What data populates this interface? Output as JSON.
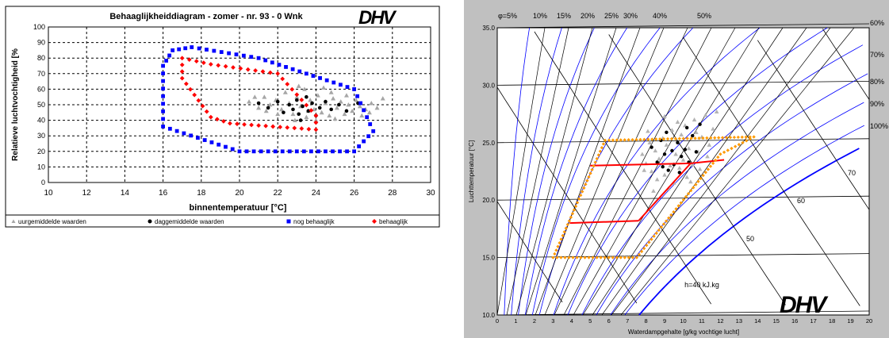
{
  "chart_data": [
    {
      "type": "scatter",
      "title": "Behaaglijkheiddiagram - zomer - nr. 93 - 0 Wnk",
      "xlabel": "binnentemperatuur [°C]",
      "ylabel": "Relatieve luchtvochtigheid [%",
      "xlim": [
        10,
        30
      ],
      "ylim": [
        0,
        100
      ],
      "xticks": [
        10,
        12,
        14,
        16,
        18,
        20,
        22,
        24,
        26,
        28,
        30
      ],
      "yticks": [
        0,
        10,
        20,
        30,
        40,
        50,
        60,
        70,
        80,
        90,
        100
      ],
      "grid": true,
      "legend_position": "bottom",
      "series": [
        {
          "name": "uurgemiddelde waarden",
          "marker": "triangle",
          "color": "#a6a6a6",
          "points": [
            [
              20.5,
              52
            ],
            [
              21.0,
              48
            ],
            [
              21.3,
              55
            ],
            [
              21.6,
              50
            ],
            [
              21.9,
              53
            ],
            [
              22.2,
              47
            ],
            [
              22.4,
              58
            ],
            [
              22.6,
              51
            ],
            [
              22.8,
              44
            ],
            [
              23.0,
              55
            ],
            [
              23.2,
              49
            ],
            [
              23.4,
              60
            ],
            [
              23.5,
              42
            ],
            [
              23.7,
              53
            ],
            [
              23.9,
              47
            ],
            [
              24.1,
              56
            ],
            [
              24.3,
              45
            ],
            [
              24.5,
              51
            ],
            [
              24.7,
              43
            ],
            [
              24.9,
              54
            ],
            [
              25.1,
              48
            ],
            [
              25.3,
              52
            ],
            [
              25.5,
              44
            ],
            [
              25.7,
              50
            ],
            [
              25.9,
              46
            ],
            [
              26.1,
              53
            ],
            [
              26.3,
              49
            ],
            [
              26.6,
              47
            ],
            [
              26.9,
              51
            ],
            [
              27.2,
              48
            ],
            [
              27.5,
              54
            ],
            [
              22.0,
              44
            ],
            [
              23.1,
              62
            ],
            [
              24.0,
              40
            ],
            [
              24.8,
              58
            ],
            [
              25.6,
              56
            ],
            [
              26.4,
              43
            ],
            [
              21.4,
              46
            ],
            [
              22.9,
              40
            ],
            [
              23.6,
              46
            ],
            [
              24.4,
              61
            ],
            [
              25.0,
              41
            ],
            [
              20.8,
              55
            ],
            [
              26.8,
              45
            ]
          ]
        },
        {
          "name": "daggemiddelde waarden",
          "marker": "circle",
          "color": "#000000",
          "points": [
            [
              21.0,
              51
            ],
            [
              21.5,
              48
            ],
            [
              22.0,
              52
            ],
            [
              22.3,
              45
            ],
            [
              22.6,
              50
            ],
            [
              22.8,
              47
            ],
            [
              23.0,
              53
            ],
            [
              23.1,
              44
            ],
            [
              23.3,
              49
            ],
            [
              23.5,
              55
            ],
            [
              23.6,
              46
            ],
            [
              23.8,
              51
            ],
            [
              24.0,
              43
            ],
            [
              24.2,
              48
            ],
            [
              24.5,
              52
            ],
            [
              24.8,
              47
            ],
            [
              25.2,
              50
            ],
            [
              25.6,
              46
            ],
            [
              26.2,
              51
            ],
            [
              23.2,
              40
            ]
          ]
        },
        {
          "name": "nog behaaglijk",
          "marker": "square",
          "color": "#0000ff",
          "polygon": [
            [
              16.0,
              75
            ],
            [
              16.5,
              85
            ],
            [
              17.5,
              87
            ],
            [
              21.0,
              80
            ],
            [
              26.0,
              60
            ],
            [
              27.0,
              33
            ],
            [
              26.0,
              20
            ],
            [
              20.0,
              20
            ],
            [
              16.0,
              36
            ]
          ]
        },
        {
          "name": "behaaglijk",
          "marker": "diamond",
          "color": "#ff0000",
          "polygon": [
            [
              17.0,
              80
            ],
            [
              18.5,
              76
            ],
            [
              22.0,
              70
            ],
            [
              24.0,
              43
            ],
            [
              24.0,
              34
            ],
            [
              19.5,
              38
            ],
            [
              18.5,
              42
            ],
            [
              17.0,
              67
            ]
          ]
        }
      ],
      "logo_text": "DHV"
    },
    {
      "type": "scatter",
      "title": "",
      "xlabel": "Waterdampgehalte [g/kg vochtige lucht]",
      "ylabel": "Luchttemperatuur [°C]",
      "xlim": [
        0,
        20
      ],
      "ylim": [
        10.0,
        35.0
      ],
      "xticks": [
        0,
        1,
        2,
        3,
        4,
        5,
        6,
        7,
        8,
        9,
        10,
        11,
        12,
        13,
        14,
        15,
        16,
        17,
        18,
        19,
        20
      ],
      "yticks": [
        "10.0",
        "15.0",
        "20.0",
        "25.0",
        "30.0",
        "35.0"
      ],
      "rh_labels_top": [
        "φ=5%",
        "10%",
        "15%",
        "20%",
        "25%",
        "30%",
        "40%",
        "50%"
      ],
      "rh_labels_right": [
        "60%",
        "70%",
        "80%",
        "90%",
        "100%"
      ],
      "rh_levels": [
        5,
        10,
        15,
        20,
        25,
        30,
        40,
        50,
        60,
        70,
        80,
        90,
        100
      ],
      "enthalpy_labels": [
        "h=40 kJ.kg",
        "50",
        "60",
        "70"
      ],
      "enthalpy_levels": [
        20,
        30,
        40,
        50,
        60,
        70,
        80,
        90,
        100
      ],
      "series": [
        {
          "name": "uurgemiddelde waarden",
          "marker": "triangle",
          "color": "#b3b3b3",
          "points": [
            [
              7.8,
              24.0
            ],
            [
              8.0,
              23.2
            ],
            [
              8.2,
              25.0
            ],
            [
              8.3,
              22.5
            ],
            [
              8.5,
              24.3
            ],
            [
              8.6,
              21.8
            ],
            [
              8.7,
              23.6
            ],
            [
              8.9,
              25.4
            ],
            [
              9.0,
              22.2
            ],
            [
              9.1,
              24.8
            ],
            [
              9.3,
              23.0
            ],
            [
              9.4,
              26.1
            ],
            [
              9.5,
              21.5
            ],
            [
              9.6,
              24.0
            ],
            [
              9.8,
              22.8
            ],
            [
              9.9,
              25.7
            ],
            [
              10.0,
              23.5
            ],
            [
              10.1,
              26.5
            ],
            [
              10.2,
              22.0
            ],
            [
              10.3,
              24.5
            ],
            [
              10.5,
              23.1
            ],
            [
              10.6,
              27.0
            ],
            [
              10.8,
              24.2
            ],
            [
              11.0,
              25.5
            ],
            [
              11.2,
              27.4
            ],
            [
              11.4,
              24.8
            ],
            [
              11.6,
              26.2
            ],
            [
              11.8,
              27.7
            ],
            [
              8.4,
              20.8
            ],
            [
              9.2,
              21.0
            ],
            [
              9.7,
              26.8
            ],
            [
              10.4,
              21.6
            ],
            [
              8.1,
              26.0
            ],
            [
              10.9,
              22.7
            ],
            [
              11.3,
              23.8
            ],
            [
              7.9,
              22.6
            ],
            [
              9.0,
              27.3
            ],
            [
              10.7,
              25.9
            ]
          ]
        },
        {
          "name": "daggemiddelde waarden",
          "marker": "circle",
          "color": "#000000",
          "points": [
            [
              8.3,
              24.6
            ],
            [
              8.6,
              23.3
            ],
            [
              8.8,
              25.2
            ],
            [
              9.0,
              24.0
            ],
            [
              9.2,
              22.6
            ],
            [
              9.4,
              24.3
            ],
            [
              9.5,
              23.1
            ],
            [
              9.7,
              25.0
            ],
            [
              9.9,
              23.8
            ],
            [
              10.1,
              24.4
            ],
            [
              10.3,
              23.3
            ],
            [
              10.5,
              25.6
            ],
            [
              10.7,
              24.2
            ],
            [
              10.9,
              26.6
            ],
            [
              9.8,
              22.4
            ],
            [
              9.1,
              25.9
            ],
            [
              10.2,
              26.3
            ],
            [
              8.9,
              22.9
            ]
          ]
        },
        {
          "name": "behaaglijk-zone",
          "color": "#ff0000",
          "lines": [
            [
              [
                3.9,
                18.0
              ],
              [
                7.6,
                18.2
              ]
            ],
            [
              [
                5.0,
                23.0
              ],
              [
                10.4,
                23.2
              ]
            ],
            [
              [
                10.4,
                23.2
              ],
              [
                12.2,
                23.5
              ]
            ],
            [
              [
                7.6,
                18.2
              ],
              [
                10.4,
                23.2
              ]
            ]
          ]
        },
        {
          "name": "nog-behaaglijk-zone",
          "color": "#ff9900",
          "polygon": [
            [
              3.0,
              15.0
            ],
            [
              7.5,
              15.0
            ],
            [
              12.0,
              24.0
            ],
            [
              13.8,
              25.5
            ],
            [
              5.8,
              25.2
            ]
          ]
        }
      ],
      "logo_text": "DHV"
    }
  ]
}
